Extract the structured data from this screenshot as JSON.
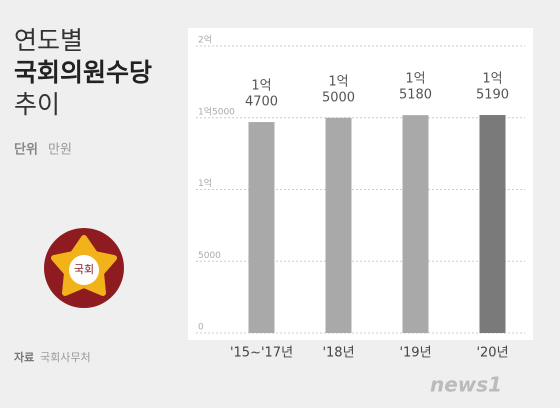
{
  "chart_data": {
    "type": "bar",
    "title_lines": [
      "연도별",
      "국회의원수당",
      "추이"
    ],
    "unit_label": "단위",
    "unit": "만원",
    "source_label": "자료",
    "source": "국회사무처",
    "logo_text": "국회",
    "watermark": "news1",
    "categories": [
      "'15~'17년",
      "'18년",
      "'19년",
      "'20년"
    ],
    "values": [
      14700,
      15000,
      15180,
      15190
    ],
    "value_labels": [
      [
        "1억",
        "4700"
      ],
      [
        "1억",
        "5000"
      ],
      [
        "1억",
        "5180"
      ],
      [
        "1억",
        "5190"
      ]
    ],
    "colors": [
      "#a9a9a9",
      "#a9a9a9",
      "#a9a9a9",
      "#7a7a7a"
    ],
    "ylim": [
      0,
      20000
    ],
    "yticks": [
      0,
      5000,
      {
        "value": 10000,
        "label": "1억"
      },
      {
        "value": 15000,
        "label": "1억5000"
      },
      {
        "value": 20000,
        "label": "2억"
      }
    ],
    "grid": true
  }
}
